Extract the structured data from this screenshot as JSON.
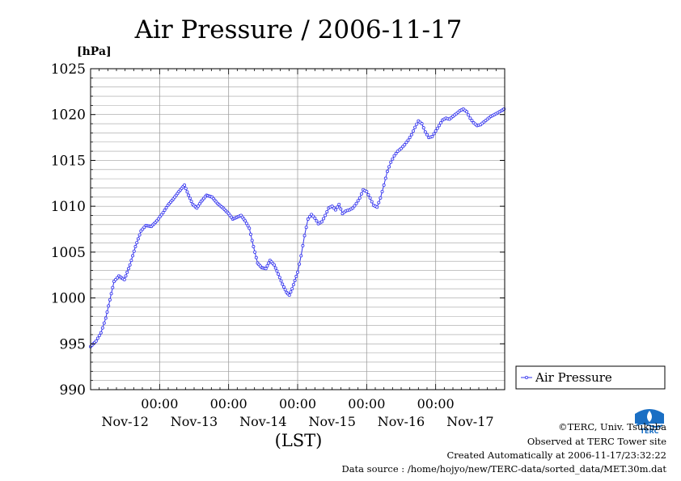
{
  "header": {
    "title": "Air Pressure / 2006-11-17",
    "unit_label": "[hPa]",
    "axis_caption": "(LST)"
  },
  "legend": {
    "label": "Air Pressure",
    "placement": "right-bottom"
  },
  "credits": {
    "owner": "©TERC, Univ. Tsukuba",
    "site": "Observed at TERC Tower site",
    "created": "Created Automatically at 2006-11-17/23:32:22",
    "source": "Data source : /home/hojyo/new/TERC-data/sorted_data/MET.30m.dat",
    "logo_text": "TERC"
  },
  "colors": {
    "series": "#3333ee",
    "grid": "#a0a0a0",
    "axis": "#000000"
  },
  "chart_data": {
    "type": "line",
    "title": "Air Pressure / 2006-11-17",
    "ylabel": "[hPa]",
    "xlabel": "(LST)",
    "ylim": [
      990,
      1025
    ],
    "yticks": [
      990,
      995,
      1000,
      1005,
      1010,
      1015,
      1020,
      1025
    ],
    "grid": true,
    "x_unit": "days since 2006-11-11 00:00 LST",
    "xlim": [
      1.0,
      7.0
    ],
    "xticks_time": [
      "00:00",
      "00:00",
      "00:00",
      "00:00",
      "00:00"
    ],
    "xtick_positions": [
      2,
      3,
      4,
      5,
      6
    ],
    "date_labels": [
      "Nov-12",
      "Nov-13",
      "Nov-14",
      "Nov-15",
      "Nov-16",
      "Nov-17"
    ],
    "date_positions": [
      1.5,
      2.5,
      3.5,
      4.5,
      5.5,
      6.5
    ],
    "series": [
      {
        "name": "Air Pressure",
        "x": [
          1.0,
          1.08,
          1.15,
          1.22,
          1.28,
          1.34,
          1.41,
          1.49,
          1.57,
          1.65,
          1.73,
          1.8,
          1.88,
          1.96,
          2.05,
          2.12,
          2.2,
          2.28,
          2.36,
          2.42,
          2.48,
          2.54,
          2.6,
          2.68,
          2.76,
          2.84,
          2.92,
          3.0,
          3.06,
          3.12,
          3.18,
          3.24,
          3.3,
          3.36,
          3.42,
          3.48,
          3.54,
          3.6,
          3.66,
          3.72,
          3.78,
          3.84,
          3.88,
          3.92,
          3.96,
          4.0,
          4.05,
          4.1,
          4.15,
          4.2,
          4.25,
          4.3,
          4.35,
          4.4,
          4.45,
          4.5,
          4.55,
          4.6,
          4.65,
          4.7,
          4.75,
          4.8,
          4.85,
          4.9,
          4.95,
          5.0,
          5.05,
          5.1,
          5.15,
          5.2,
          5.25,
          5.3,
          5.35,
          5.4,
          5.45,
          5.5,
          5.55,
          5.6,
          5.65,
          5.7,
          5.75,
          5.8,
          5.85,
          5.9,
          5.95,
          6.0,
          6.05,
          6.1,
          6.15,
          6.2,
          6.25,
          6.3,
          6.35,
          6.4,
          6.45,
          6.5,
          6.55,
          6.6,
          6.65,
          6.7,
          6.75,
          6.8,
          6.85,
          6.9,
          6.95,
          6.99
        ],
        "values": [
          994.7,
          995.3,
          996.2,
          997.8,
          999.8,
          1001.8,
          1002.4,
          1002.0,
          1003.6,
          1005.6,
          1007.3,
          1007.9,
          1007.8,
          1008.4,
          1009.3,
          1010.1,
          1010.8,
          1011.6,
          1012.3,
          1011.2,
          1010.2,
          1009.8,
          1010.5,
          1011.2,
          1011.0,
          1010.3,
          1009.8,
          1009.2,
          1008.6,
          1008.8,
          1009.0,
          1008.4,
          1007.6,
          1005.6,
          1003.8,
          1003.3,
          1003.2,
          1004.1,
          1003.6,
          1002.6,
          1001.5,
          1000.6,
          1000.3,
          1001.0,
          1001.9,
          1002.8,
          1004.6,
          1006.8,
          1008.6,
          1009.1,
          1008.7,
          1008.1,
          1008.3,
          1009.0,
          1009.8,
          1010.0,
          1009.6,
          1010.2,
          1009.2,
          1009.5,
          1009.6,
          1009.8,
          1010.3,
          1010.9,
          1011.8,
          1011.6,
          1010.9,
          1010.1,
          1009.9,
          1010.9,
          1012.3,
          1013.8,
          1014.8,
          1015.5,
          1016.0,
          1016.3,
          1016.7,
          1017.2,
          1017.8,
          1018.6,
          1019.3,
          1019.0,
          1018.1,
          1017.5,
          1017.6,
          1018.2,
          1018.8,
          1019.4,
          1019.6,
          1019.5,
          1019.8,
          1020.1,
          1020.4,
          1020.6,
          1020.3,
          1019.6,
          1019.1,
          1018.8,
          1018.9,
          1019.2,
          1019.5,
          1019.8,
          1020.0,
          1020.2,
          1020.4,
          1020.6
        ]
      }
    ]
  }
}
